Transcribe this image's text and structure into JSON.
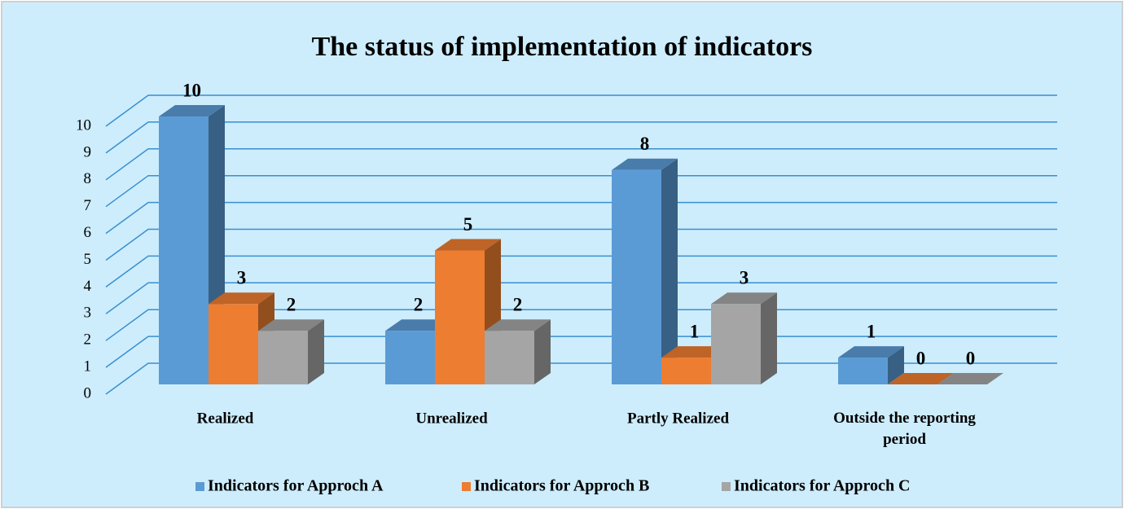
{
  "chart_data": {
    "type": "bar3d",
    "title": "The status of implementation of indicators",
    "categories": [
      "Realized",
      "Unrealized",
      "Partly Realized",
      "Outside the reporting period"
    ],
    "series": [
      {
        "name": "Indicators for Approch A",
        "color": "#5b9bd5",
        "values": [
          10,
          2,
          8,
          1
        ]
      },
      {
        "name": "Indicators for Approch B",
        "color": "#ed7d31",
        "values": [
          3,
          5,
          1,
          0
        ]
      },
      {
        "name": "Indicators for Approch C",
        "color": "#a5a5a5",
        "values": [
          2,
          2,
          3,
          0
        ]
      }
    ],
    "ylim": [
      0,
      10
    ],
    "yticks": [
      0,
      1,
      2,
      3,
      4,
      5,
      6,
      7,
      8,
      9,
      10
    ],
    "grid": true,
    "legend": "bottom"
  }
}
